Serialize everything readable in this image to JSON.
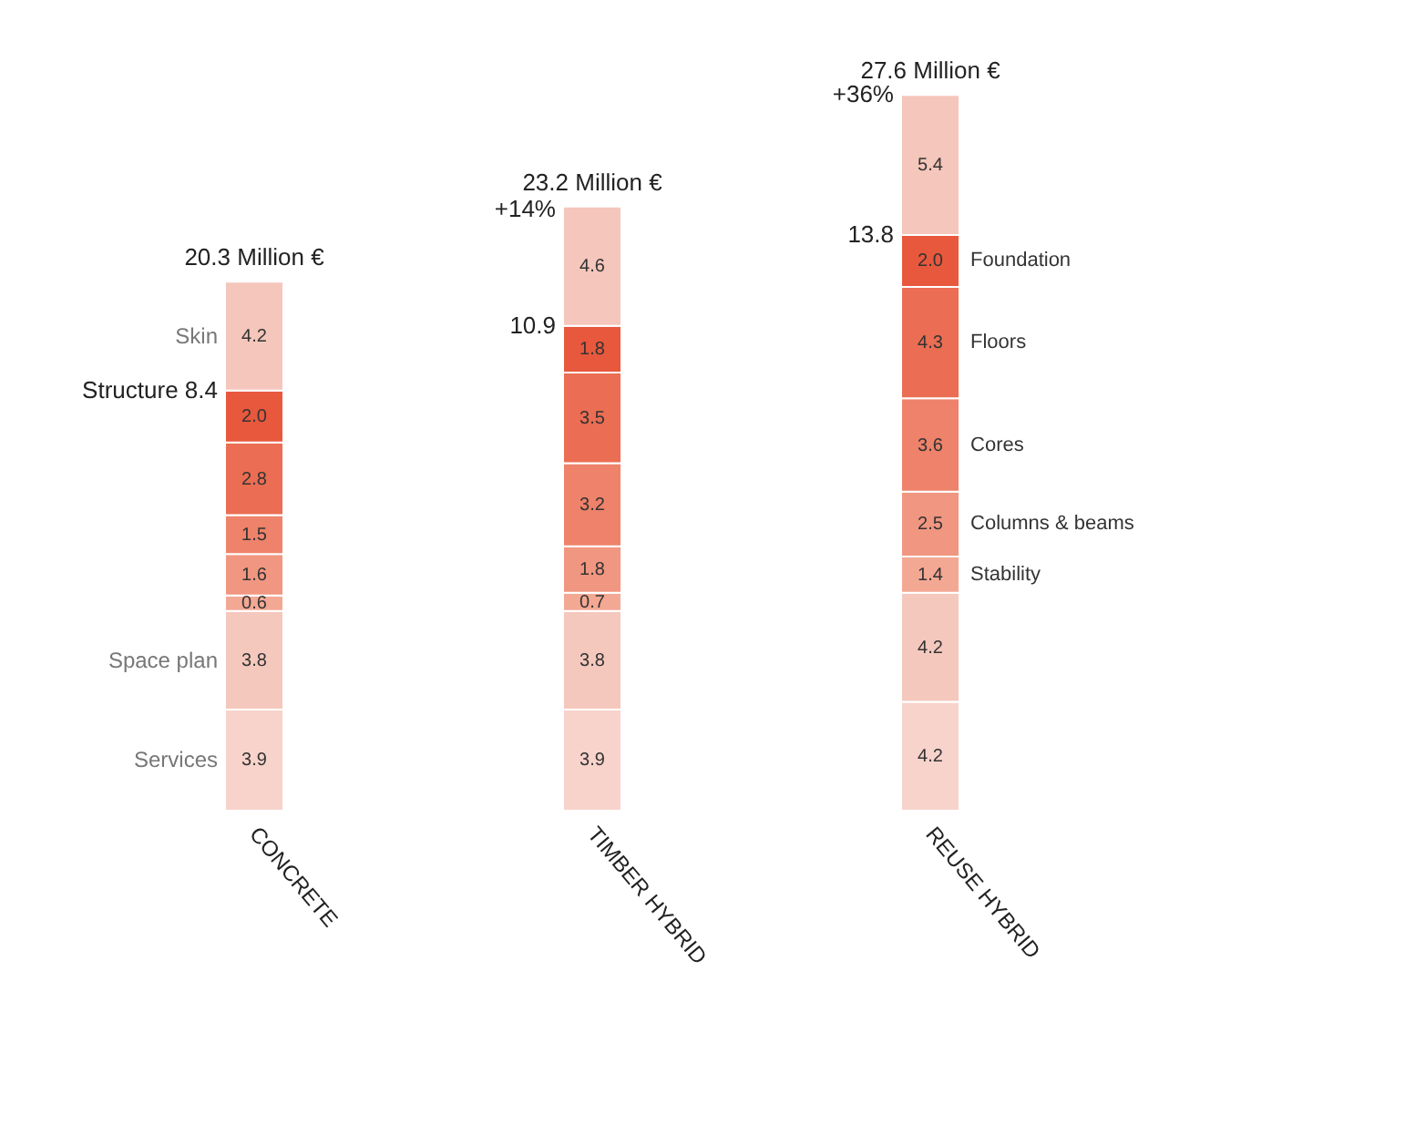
{
  "chart_data": {
    "type": "bar",
    "stacked": true,
    "categories": [
      "CONCRETE",
      "TIMBER HYBRID",
      "REUSE HYBRID"
    ],
    "series": [
      {
        "name": "Services",
        "color": "#f7d3cb",
        "values": [
          3.9,
          3.9,
          4.2
        ],
        "value_labels": [
          "3.9",
          "3.9",
          "4.2"
        ]
      },
      {
        "name": "Space plan",
        "color": "#f5c8bd",
        "values": [
          3.8,
          3.8,
          4.2
        ],
        "value_labels": [
          "3.8",
          "3.8",
          "4.2"
        ]
      },
      {
        "name": "Stability",
        "color": "#f3a894",
        "values": [
          0.6,
          0.7,
          1.4
        ],
        "value_labels": [
          "0.6",
          "0.7",
          "1.4"
        ]
      },
      {
        "name": "Columns & beams",
        "color": "#f19680",
        "values": [
          1.6,
          1.8,
          2.5
        ],
        "value_labels": [
          "1.6",
          "1.8",
          "2.5"
        ]
      },
      {
        "name": "Cores",
        "color": "#ee826a",
        "values": [
          1.5,
          3.2,
          3.6
        ],
        "value_labels": [
          "1.5",
          "3.2",
          "3.6"
        ]
      },
      {
        "name": "Floors",
        "color": "#eb6d53",
        "values": [
          2.8,
          3.5,
          4.3
        ],
        "value_labels": [
          "2.8",
          "3.5",
          "4.3"
        ]
      },
      {
        "name": "Foundation",
        "color": "#e8583d",
        "values": [
          2.0,
          1.8,
          2.0
        ],
        "value_labels": [
          "2.0",
          "1.8",
          "2.0"
        ]
      },
      {
        "name": "Skin",
        "color": "#f5c6bb",
        "values": [
          4.2,
          4.6,
          5.4
        ],
        "value_labels": [
          "4.2",
          "4.6",
          "5.4"
        ]
      }
    ],
    "totals": [
      "20.3 Million €",
      "23.2 Million €",
      "27.6 Million €"
    ],
    "annotations": [
      {
        "text": "Structure 8.4",
        "x": "CONCRETE",
        "y": 16.2
      },
      {
        "text": "10.9",
        "x": "TIMBER HYBRID",
        "y": 18.7
      },
      {
        "text": "13.8",
        "x": "REUSE HYBRID",
        "y": 22.2
      },
      {
        "text": "+14%",
        "x": "TIMBER HYBRID",
        "y": 23.2
      },
      {
        "text": "+36%",
        "x": "REUSE HYBRID",
        "y": 27.6
      }
    ]
  }
}
